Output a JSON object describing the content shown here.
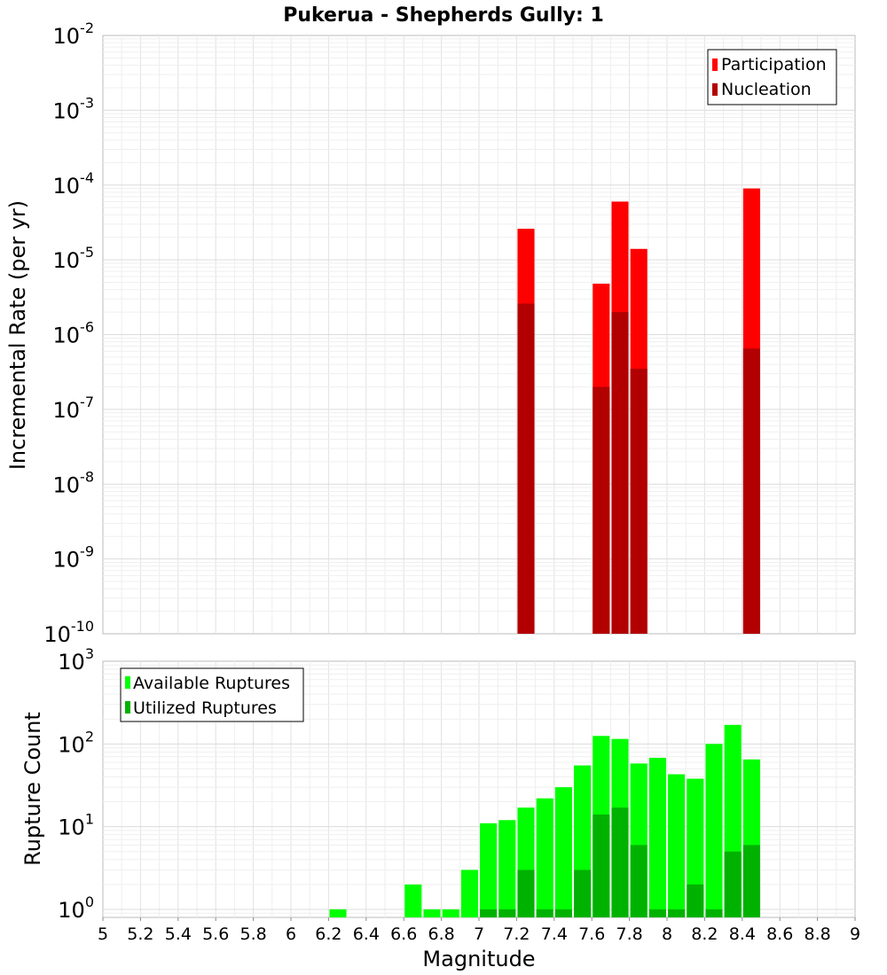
{
  "chart_data": [
    {
      "type": "bar",
      "title": "Pukerua - Shepherds Gully: 1",
      "xlabel": "",
      "ylabel": "Incremental Rate (per yr)",
      "yscale": "log",
      "ylim": [
        1e-10,
        0.01
      ],
      "xlim": [
        5,
        9
      ],
      "grid": true,
      "legend_position": "top-right",
      "bar_width": 0.09,
      "ytick_labels": [
        {
          "base": "10",
          "exp": "-10",
          "value": 1e-10
        },
        {
          "base": "10",
          "exp": "-9",
          "value": 1e-09
        },
        {
          "base": "10",
          "exp": "-8",
          "value": 1e-08
        },
        {
          "base": "10",
          "exp": "-7",
          "value": 1e-07
        },
        {
          "base": "10",
          "exp": "-6",
          "value": 1e-06
        },
        {
          "base": "10",
          "exp": "-5",
          "value": 1e-05
        },
        {
          "base": "10",
          "exp": "-4",
          "value": 0.0001
        },
        {
          "base": "10",
          "exp": "-3",
          "value": 0.001
        },
        {
          "base": "10",
          "exp": "-2",
          "value": 0.01
        }
      ],
      "series": [
        {
          "name": "Participation",
          "color": "#ff0000",
          "points": [
            {
              "x": 7.25,
              "y": 2.6e-05
            },
            {
              "x": 7.65,
              "y": 4.8e-06
            },
            {
              "x": 7.75,
              "y": 6e-05
            },
            {
              "x": 7.85,
              "y": 1.4e-05
            },
            {
              "x": 8.45,
              "y": 9e-05
            }
          ]
        },
        {
          "name": "Nucleation",
          "color": "#b20000",
          "points": [
            {
              "x": 7.25,
              "y": 2.6e-06
            },
            {
              "x": 7.65,
              "y": 2e-07
            },
            {
              "x": 7.75,
              "y": 2e-06
            },
            {
              "x": 7.85,
              "y": 3.5e-07
            },
            {
              "x": 8.45,
              "y": 6.5e-07
            }
          ]
        }
      ]
    },
    {
      "type": "bar",
      "title": "",
      "xlabel": "Magnitude",
      "ylabel": "Rupture Count",
      "yscale": "log",
      "ylim": [
        0.8,
        1000
      ],
      "xlim": [
        5,
        9
      ],
      "grid": true,
      "legend_position": "top-left",
      "bar_width": 0.09,
      "xtick_labels": [
        "5",
        "5.2",
        "5.4",
        "5.6",
        "5.8",
        "6",
        "6.2",
        "6.4",
        "6.6",
        "6.8",
        "7",
        "7.2",
        "7.4",
        "7.6",
        "7.8",
        "8",
        "8.2",
        "8.4",
        "8.6",
        "8.8",
        "9"
      ],
      "ytick_labels": [
        {
          "base": "10",
          "exp": "0",
          "value": 1
        },
        {
          "base": "10",
          "exp": "1",
          "value": 10
        },
        {
          "base": "10",
          "exp": "2",
          "value": 100
        },
        {
          "base": "10",
          "exp": "3",
          "value": 1000
        }
      ],
      "series": [
        {
          "name": "Available Ruptures",
          "color": "#00ff00",
          "points": [
            {
              "x": 6.25,
              "y": 1
            },
            {
              "x": 6.65,
              "y": 2
            },
            {
              "x": 6.75,
              "y": 1
            },
            {
              "x": 6.85,
              "y": 1
            },
            {
              "x": 6.95,
              "y": 3
            },
            {
              "x": 7.05,
              "y": 11
            },
            {
              "x": 7.15,
              "y": 12
            },
            {
              "x": 7.25,
              "y": 17
            },
            {
              "x": 7.35,
              "y": 22
            },
            {
              "x": 7.45,
              "y": 30
            },
            {
              "x": 7.55,
              "y": 55
            },
            {
              "x": 7.65,
              "y": 125
            },
            {
              "x": 7.75,
              "y": 115
            },
            {
              "x": 7.85,
              "y": 58
            },
            {
              "x": 7.95,
              "y": 68
            },
            {
              "x": 8.05,
              "y": 43
            },
            {
              "x": 8.15,
              "y": 38
            },
            {
              "x": 8.25,
              "y": 100
            },
            {
              "x": 8.35,
              "y": 170
            },
            {
              "x": 8.45,
              "y": 65
            }
          ]
        },
        {
          "name": "Utilized Ruptures",
          "color": "#00b200",
          "points": [
            {
              "x": 7.05,
              "y": 1
            },
            {
              "x": 7.15,
              "y": 1
            },
            {
              "x": 7.25,
              "y": 3
            },
            {
              "x": 7.35,
              "y": 1
            },
            {
              "x": 7.45,
              "y": 1
            },
            {
              "x": 7.55,
              "y": 3
            },
            {
              "x": 7.65,
              "y": 14
            },
            {
              "x": 7.75,
              "y": 17
            },
            {
              "x": 7.85,
              "y": 6
            },
            {
              "x": 7.95,
              "y": 1
            },
            {
              "x": 8.05,
              "y": 1
            },
            {
              "x": 8.15,
              "y": 2
            },
            {
              "x": 8.25,
              "y": 1
            },
            {
              "x": 8.35,
              "y": 5
            },
            {
              "x": 8.45,
              "y": 6
            }
          ]
        }
      ]
    }
  ]
}
